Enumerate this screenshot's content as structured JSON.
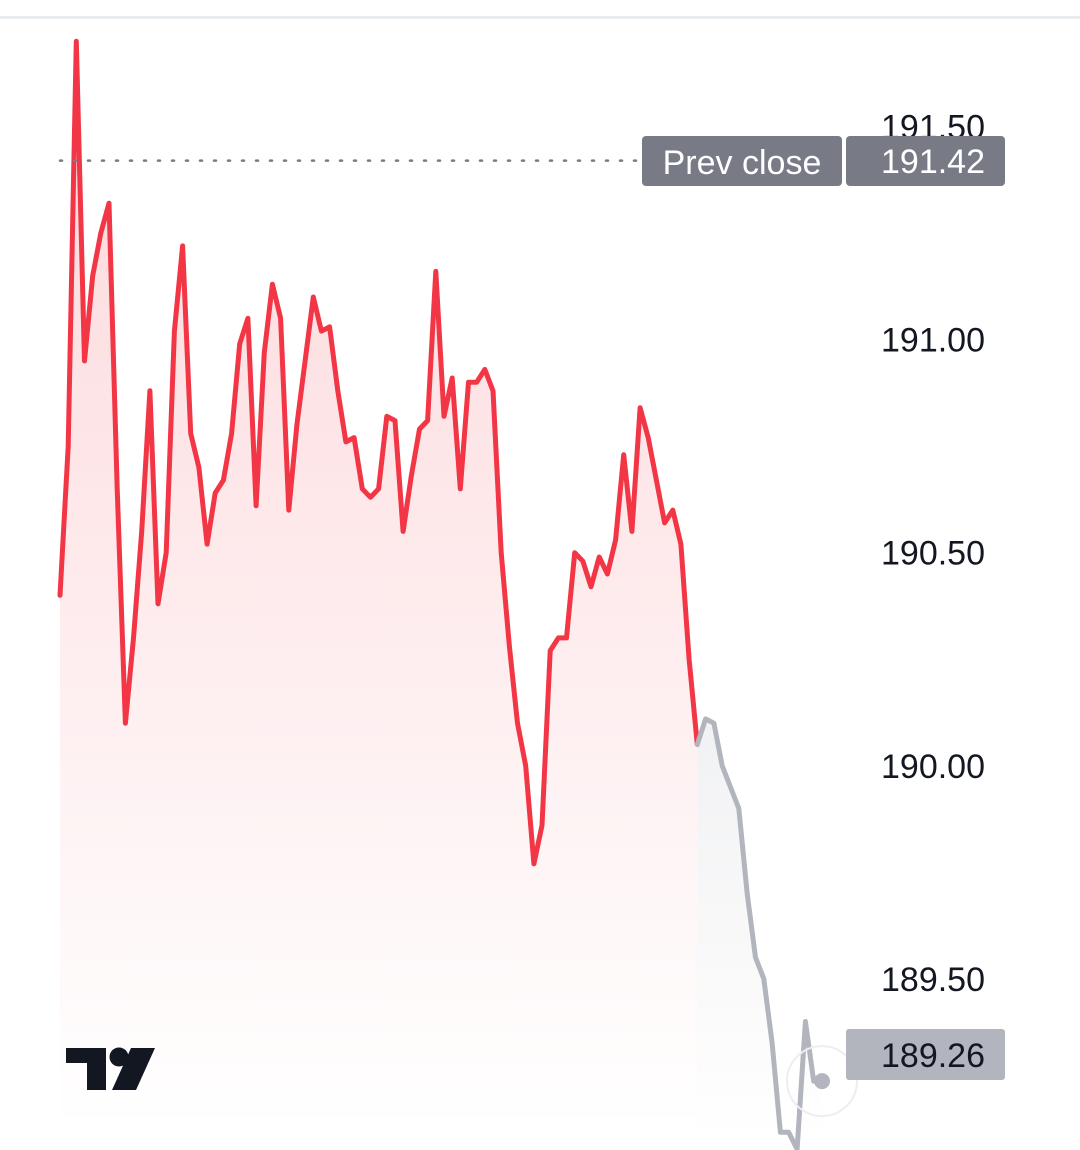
{
  "chart_data": {
    "type": "line",
    "y_ticks": [
      "191.50",
      "191.00",
      "190.50",
      "190.00",
      "189.50"
    ],
    "y_tick_values": [
      191.5,
      191.0,
      190.5,
      190.0,
      189.5
    ],
    "ylim": [
      189.15,
      191.75
    ],
    "prev_close": {
      "label": "Prev close",
      "value": 191.42,
      "value_text": "191.42"
    },
    "last_price": {
      "value": 189.26,
      "value_text": "189.26"
    },
    "colors": {
      "session": "#f23645",
      "extended": "#b2b5be",
      "badge": "#787b86",
      "last_badge": "#b2b5be"
    },
    "session_series": [
      190.4,
      190.75,
      191.7,
      190.95,
      191.15,
      191.25,
      191.32,
      190.65,
      190.1,
      190.3,
      190.55,
      190.88,
      190.38,
      190.5,
      191.02,
      191.22,
      190.78,
      190.7,
      190.52,
      190.64,
      190.67,
      190.78,
      190.99,
      191.05,
      190.61,
      190.97,
      191.13,
      191.05,
      190.6,
      190.8,
      190.95,
      191.1,
      191.02,
      191.03,
      190.88,
      190.76,
      190.77,
      190.65,
      190.63,
      190.65,
      190.82,
      190.81,
      190.55,
      190.68,
      190.79,
      190.81,
      191.16,
      190.82,
      190.91,
      190.65,
      190.9,
      190.9,
      190.93,
      190.88,
      190.5,
      190.28,
      190.1,
      190.0,
      189.77,
      189.86,
      190.27,
      190.3,
      190.3,
      190.5,
      190.48,
      190.42,
      190.49,
      190.45,
      190.53,
      190.73,
      190.55,
      190.84,
      190.77,
      190.67,
      190.57,
      190.6,
      190.52,
      190.25,
      190.05
    ],
    "extended_series": [
      190.05,
      190.11,
      190.1,
      190.0,
      189.95,
      189.9,
      189.7,
      189.55,
      189.5,
      189.35,
      189.14,
      189.14,
      189.1,
      189.4,
      189.26,
      189.26
    ]
  }
}
